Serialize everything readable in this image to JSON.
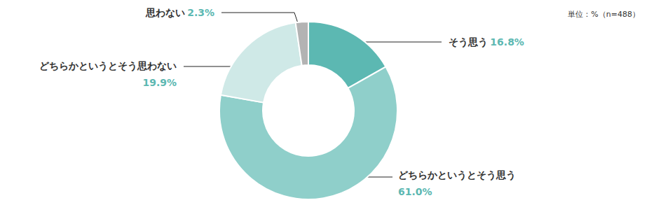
{
  "chart_data": {
    "type": "pie",
    "subtitle": "単位：%（n=488）",
    "categories": [
      "そう思う",
      "どちらかというとそう思う",
      "どちらかというとそう思わない",
      "思わない"
    ],
    "values": [
      16.8,
      61.0,
      19.9,
      2.3
    ],
    "value_labels": [
      "16.8%",
      "61.0%",
      "19.9%",
      "2.3%"
    ],
    "colors": [
      "#5cb8b2",
      "#8fcfca",
      "#cfe9e7",
      "#b3b3b3"
    ],
    "data_labels": true
  }
}
